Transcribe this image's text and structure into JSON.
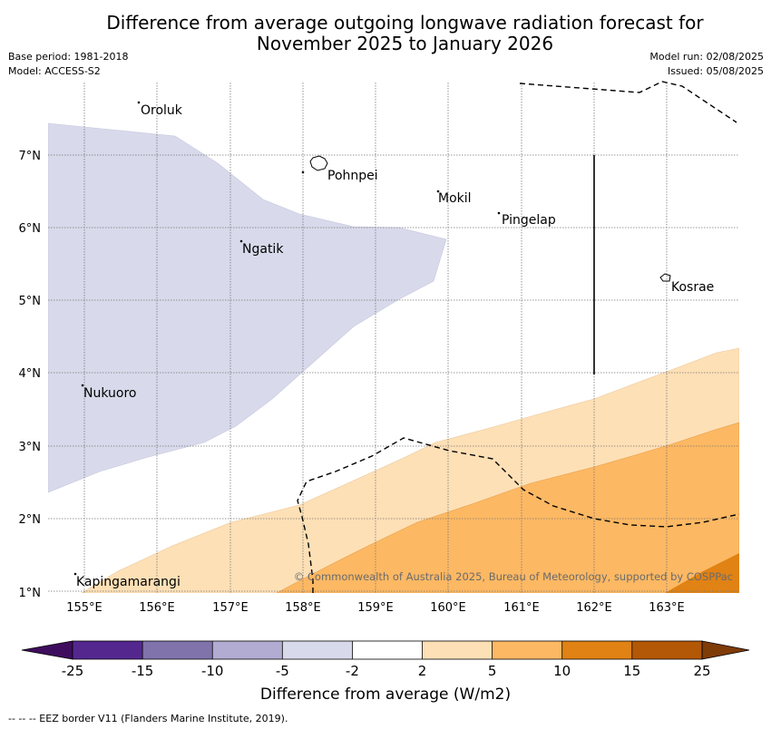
{
  "title_line1": "Difference from average outgoing longwave radiation forecast for",
  "title_line2": "November 2025 to January 2026",
  "base_period": "Base period: 1981-2018",
  "model": "Model: ACCESS-S2",
  "model_run": "Model run: 02/08/2025",
  "issued": "Issued: 05/08/2025",
  "lon_labels": [
    "155°E",
    "156°E",
    "157°E",
    "158°E",
    "159°E",
    "160°E",
    "161°E",
    "162°E",
    "163°E"
  ],
  "lat_labels": [
    "7°N",
    "6°N",
    "5°N",
    "4°N",
    "3°N",
    "2°N",
    "1°N"
  ],
  "islands": {
    "oroluk": "Oroluk",
    "pohnpei": "Pohnpei",
    "mokil": "Mokil",
    "pingelap": "Pingelap",
    "ngatik": "Ngatik",
    "kosrae": "Kosrae",
    "nukuoro": "Nukuoro",
    "kapingamarangi": "Kapingamarangi"
  },
  "copyright": "© Commonwealth of Australia 2025, Bureau of Meteorology, supported by COSPPac",
  "colorbar": {
    "labels": [
      "-25",
      "-15",
      "-10",
      "-5",
      "-2",
      "2",
      "5",
      "10",
      "15",
      "25"
    ],
    "colors": [
      "#3f0d5e",
      "#54278f",
      "#8073ac",
      "#b2abd2",
      "#d8daeb",
      "#ffffff",
      "#fee0b6",
      "#fdb863",
      "#e08214",
      "#b35806",
      "#7f3b08"
    ],
    "title": "Difference from average (W/m2)"
  },
  "footer": "--  --  -- EEZ border V11 (Flanders Marine Institute, 2019)."
}
